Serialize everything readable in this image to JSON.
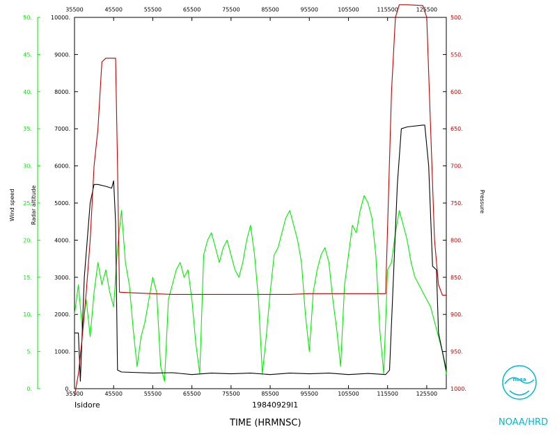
{
  "colors": {
    "wind": "#00ee00",
    "pressure": "#c00000",
    "altitude": "#000000",
    "logo": "#00b8d0"
  },
  "texts": {
    "storm": "Isidore",
    "flight": "19840929I1",
    "xlabel": "TIME (HRMNSC)",
    "wind_label": "Wind speed",
    "alt_label": "Radar altitude",
    "pressure_label": "Pressure",
    "org": "NOAA/HRD",
    "logo_text": "noaa"
  },
  "chart_data": {
    "type": "line",
    "xlim": [
      35500,
      130500
    ],
    "x_ticks": [
      {
        "v": 35500,
        "label": "35500"
      },
      {
        "v": 45500,
        "label": "45500"
      },
      {
        "v": 55500,
        "label": "55500"
      },
      {
        "v": 65500,
        "label": "65500"
      },
      {
        "v": 75500,
        "label": "75500"
      },
      {
        "v": 85500,
        "label": "85500"
      },
      {
        "v": 95500,
        "label": "95500"
      },
      {
        "v": 105500,
        "label": "105500"
      },
      {
        "v": 115500,
        "label": "115500"
      },
      {
        "v": 125500,
        "label": "125500"
      }
    ],
    "wind_axis": {
      "lim": [
        0,
        50
      ],
      "ticks": [
        "0.",
        "5.",
        "10.",
        "15.",
        "20.",
        "25.",
        "30.",
        "35.",
        "40.",
        "45.",
        "50."
      ]
    },
    "alt_axis": {
      "lim": [
        0,
        10000
      ],
      "ticks": [
        "0.",
        "1000.",
        "2000.",
        "3000.",
        "4000.",
        "5000.",
        "6000.",
        "7000.",
        "8000.",
        "9000.",
        "10000."
      ]
    },
    "pressure_axis": {
      "lim": [
        1000,
        500
      ],
      "ticks": [
        "500.",
        "550.",
        "600.",
        "650.",
        "700.",
        "750.",
        "800.",
        "850.",
        "900.",
        "950.",
        "1000."
      ]
    },
    "series": [
      {
        "name": "Wind speed",
        "axis": "wind",
        "points": [
          [
            35500,
            10
          ],
          [
            36500,
            14
          ],
          [
            37500,
            8
          ],
          [
            38500,
            12
          ],
          [
            39500,
            7
          ],
          [
            40500,
            13
          ],
          [
            41500,
            17
          ],
          [
            42500,
            14
          ],
          [
            43500,
            16
          ],
          [
            44500,
            13
          ],
          [
            45500,
            11
          ],
          [
            46500,
            19
          ],
          [
            47500,
            24
          ],
          [
            48500,
            17
          ],
          [
            49500,
            14
          ],
          [
            50500,
            8
          ],
          [
            51500,
            3
          ],
          [
            52500,
            7
          ],
          [
            53500,
            9
          ],
          [
            54500,
            12
          ],
          [
            55500,
            15
          ],
          [
            56500,
            13
          ],
          [
            57500,
            3
          ],
          [
            58500,
            1
          ],
          [
            59500,
            12
          ],
          [
            60500,
            14
          ],
          [
            61500,
            16
          ],
          [
            62500,
            17
          ],
          [
            63500,
            15
          ],
          [
            64500,
            16
          ],
          [
            65500,
            12
          ],
          [
            66500,
            6
          ],
          [
            67500,
            2
          ],
          [
            68500,
            18
          ],
          [
            69500,
            20
          ],
          [
            70500,
            21
          ],
          [
            71500,
            19
          ],
          [
            72500,
            17
          ],
          [
            73500,
            19
          ],
          [
            74500,
            20
          ],
          [
            75500,
            18
          ],
          [
            76500,
            16
          ],
          [
            77500,
            15
          ],
          [
            78500,
            17
          ],
          [
            79500,
            20
          ],
          [
            80500,
            22
          ],
          [
            81500,
            18
          ],
          [
            82500,
            12
          ],
          [
            83500,
            2
          ],
          [
            84500,
            7
          ],
          [
            85500,
            13
          ],
          [
            86500,
            18
          ],
          [
            87500,
            19
          ],
          [
            88500,
            21
          ],
          [
            89500,
            23
          ],
          [
            90500,
            24
          ],
          [
            91500,
            22
          ],
          [
            92500,
            20
          ],
          [
            93500,
            17
          ],
          [
            94500,
            10
          ],
          [
            95500,
            5
          ],
          [
            96500,
            13
          ],
          [
            97500,
            16
          ],
          [
            98500,
            18
          ],
          [
            99500,
            19
          ],
          [
            100500,
            17
          ],
          [
            101500,
            12
          ],
          [
            102500,
            8
          ],
          [
            103500,
            3
          ],
          [
            104500,
            14
          ],
          [
            105500,
            18
          ],
          [
            106500,
            22
          ],
          [
            107500,
            21
          ],
          [
            108500,
            24
          ],
          [
            109500,
            26
          ],
          [
            110500,
            25
          ],
          [
            111500,
            23
          ],
          [
            112500,
            18
          ],
          [
            113500,
            8
          ],
          [
            114500,
            2
          ],
          [
            115500,
            16
          ],
          [
            116500,
            17
          ],
          [
            117500,
            21
          ],
          [
            118500,
            24
          ],
          [
            119500,
            22
          ],
          [
            120500,
            20
          ],
          [
            121500,
            17
          ],
          [
            122500,
            15
          ],
          [
            123500,
            14
          ],
          [
            124500,
            13
          ],
          [
            125500,
            12
          ],
          [
            126500,
            11
          ],
          [
            127500,
            9
          ],
          [
            128500,
            7
          ],
          [
            129500,
            5
          ],
          [
            130500,
            2
          ]
        ]
      },
      {
        "name": "Radar altitude",
        "axis": "alt",
        "points": [
          [
            35500,
            1500
          ],
          [
            36500,
            1500
          ],
          [
            37000,
            200
          ],
          [
            38000,
            3000
          ],
          [
            39500,
            5000
          ],
          [
            40500,
            5500
          ],
          [
            41500,
            5500
          ],
          [
            43500,
            5450
          ],
          [
            45000,
            5400
          ],
          [
            45500,
            5600
          ],
          [
            46000,
            4500
          ],
          [
            46500,
            500
          ],
          [
            47500,
            450
          ],
          [
            55500,
            420
          ],
          [
            60500,
            430
          ],
          [
            65500,
            380
          ],
          [
            70500,
            420
          ],
          [
            75500,
            400
          ],
          [
            80500,
            420
          ],
          [
            85500,
            380
          ],
          [
            90500,
            420
          ],
          [
            95500,
            400
          ],
          [
            100500,
            420
          ],
          [
            105500,
            380
          ],
          [
            110500,
            410
          ],
          [
            115000,
            380
          ],
          [
            116000,
            500
          ],
          [
            118000,
            5500
          ],
          [
            119000,
            7000
          ],
          [
            120500,
            7050
          ],
          [
            124500,
            7100
          ],
          [
            125000,
            7100
          ],
          [
            126000,
            6000
          ],
          [
            127000,
            3300
          ],
          [
            128000,
            3200
          ],
          [
            128500,
            1500
          ],
          [
            130500,
            500
          ]
        ]
      },
      {
        "name": "Pressure",
        "axis": "pressure",
        "points": [
          [
            35500,
            1010
          ],
          [
            36500,
            980
          ],
          [
            37500,
            930
          ],
          [
            38500,
            870
          ],
          [
            39500,
            800
          ],
          [
            40500,
            700
          ],
          [
            41500,
            650
          ],
          [
            42500,
            560
          ],
          [
            43500,
            555
          ],
          [
            45500,
            555
          ],
          [
            46000,
            555
          ],
          [
            46500,
            700
          ],
          [
            47000,
            870
          ],
          [
            50500,
            871
          ],
          [
            55500,
            872
          ],
          [
            60500,
            873
          ],
          [
            65500,
            873
          ],
          [
            70500,
            873
          ],
          [
            75500,
            873
          ],
          [
            80500,
            873
          ],
          [
            85500,
            873
          ],
          [
            90500,
            873
          ],
          [
            95500,
            872
          ],
          [
            100500,
            872
          ],
          [
            105500,
            872
          ],
          [
            110500,
            872
          ],
          [
            115000,
            872
          ],
          [
            116500,
            600
          ],
          [
            117500,
            500
          ],
          [
            118500,
            483
          ],
          [
            120500,
            483
          ],
          [
            124500,
            484
          ],
          [
            125500,
            500
          ],
          [
            126500,
            650
          ],
          [
            127500,
            800
          ],
          [
            128500,
            860
          ],
          [
            129500,
            874
          ],
          [
            130500,
            874
          ]
        ]
      }
    ]
  }
}
